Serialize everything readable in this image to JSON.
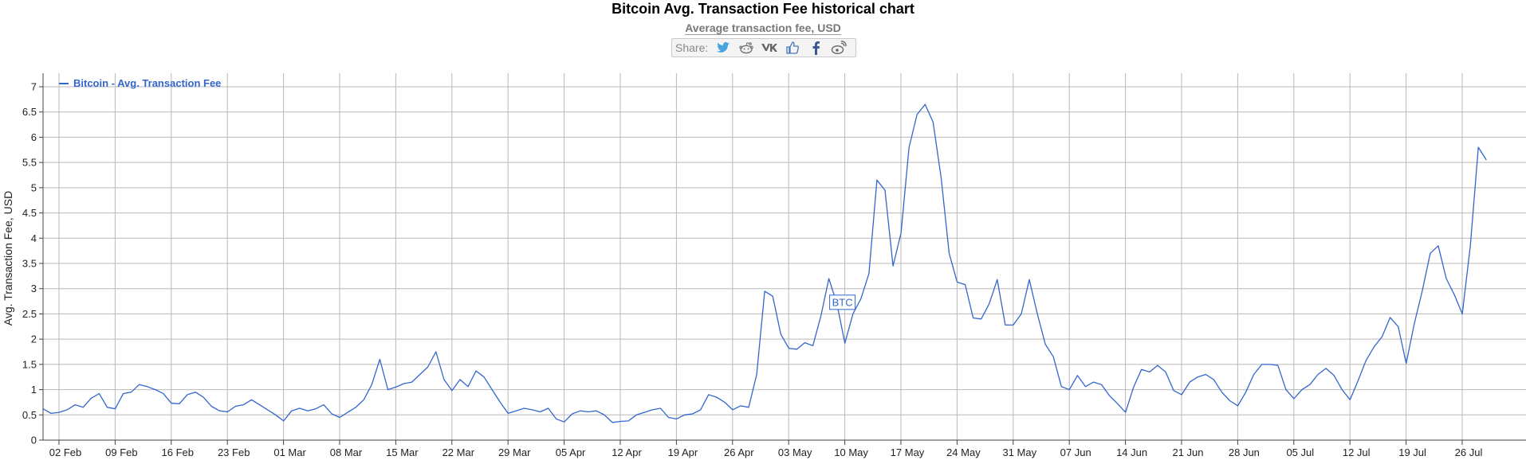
{
  "title": "Bitcoin Avg. Transaction Fee historical chart",
  "subtitle": "Average transaction fee, USD",
  "share": {
    "label": "Share:",
    "buttons": [
      "twitter-icon",
      "reddit-icon",
      "vk-icon",
      "like-icon",
      "facebook-icon",
      "weibo-icon"
    ]
  },
  "colors": {
    "series": "#3366cc",
    "grid": "#b8b8b8"
  },
  "chart_data": {
    "type": "line",
    "title": "Bitcoin Avg. Transaction Fee historical chart",
    "subtitle": "Average transaction fee, USD",
    "ylabel": "Avg. Transaction Fee, USD",
    "xlabel": "",
    "ylim": [
      0,
      7
    ],
    "yticks": [
      "0",
      "0.5",
      "1",
      "1.5",
      "2",
      "2.5",
      "3",
      "3.5",
      "4",
      "4.5",
      "5",
      "5.5",
      "6",
      "6.5",
      "7"
    ],
    "xticks": [
      "02 Feb",
      "09 Feb",
      "16 Feb",
      "23 Feb",
      "01 Mar",
      "08 Mar",
      "15 Mar",
      "22 Mar",
      "29 Mar",
      "05 Apr",
      "12 Apr",
      "19 Apr",
      "26 Apr",
      "03 May",
      "10 May",
      "17 May",
      "24 May",
      "31 May",
      "07 Jun",
      "14 Jun",
      "21 Jun",
      "28 Jun",
      "05 Jul",
      "12 Jul",
      "19 Jul",
      "26 Jul"
    ],
    "grid": true,
    "legend": {
      "position": "top-left",
      "entries": [
        "Bitcoin - Avg. Transaction Fee"
      ]
    },
    "annotation": {
      "text": "BTC",
      "date": "10 May"
    },
    "series": [
      {
        "name": "Bitcoin - Avg. Transaction Fee",
        "start": "02 Feb",
        "step": "1 day",
        "values": [
          0.62,
          0.53,
          0.55,
          0.6,
          0.7,
          0.65,
          0.83,
          0.92,
          0.65,
          0.62,
          0.92,
          0.95,
          1.1,
          1.06,
          1.0,
          0.92,
          0.73,
          0.72,
          0.9,
          0.95,
          0.85,
          0.67,
          0.58,
          0.56,
          0.67,
          0.7,
          0.8,
          0.7,
          0.6,
          0.5,
          0.38,
          0.58,
          0.63,
          0.58,
          0.62,
          0.7,
          0.52,
          0.45,
          0.55,
          0.65,
          0.8,
          1.1,
          1.6,
          1.0,
          1.05,
          1.12,
          1.15,
          1.3,
          1.45,
          1.75,
          1.2,
          0.98,
          1.2,
          1.06,
          1.37,
          1.25,
          1.0,
          0.75,
          0.53,
          0.58,
          0.63,
          0.6,
          0.56,
          0.63,
          0.42,
          0.36,
          0.52,
          0.58,
          0.56,
          0.58,
          0.5,
          0.35,
          0.37,
          0.38,
          0.5,
          0.55,
          0.6,
          0.63,
          0.45,
          0.42,
          0.5,
          0.52,
          0.6,
          0.9,
          0.85,
          0.75,
          0.6,
          0.68,
          0.65,
          1.3,
          2.95,
          2.85,
          2.1,
          1.82,
          1.8,
          1.93,
          1.87,
          2.45,
          3.2,
          2.7,
          1.92,
          2.5,
          2.8,
          3.3,
          5.15,
          4.95,
          3.45,
          4.1,
          5.8,
          6.45,
          6.65,
          6.3,
          5.2,
          3.7,
          3.13,
          3.08,
          2.42,
          2.4,
          2.7,
          3.18,
          2.28,
          2.28,
          2.5,
          3.18,
          2.5,
          1.9,
          1.65,
          1.06,
          1.0,
          1.28,
          1.06,
          1.15,
          1.1,
          0.88,
          0.72,
          0.55,
          1.05,
          1.4,
          1.35,
          1.48,
          1.35,
          0.98,
          0.9,
          1.15,
          1.25,
          1.3,
          1.2,
          0.95,
          0.78,
          0.68,
          0.95,
          1.3,
          1.5,
          1.5,
          1.48,
          1.0,
          0.82,
          1.0,
          1.1,
          1.3,
          1.42,
          1.28,
          1.0,
          0.8,
          1.18,
          1.58,
          1.85,
          2.05,
          2.43,
          2.25,
          1.52,
          2.3,
          2.95,
          3.7,
          3.85,
          3.2,
          2.88,
          2.5,
          3.85,
          5.8,
          5.55
        ]
      }
    ]
  }
}
